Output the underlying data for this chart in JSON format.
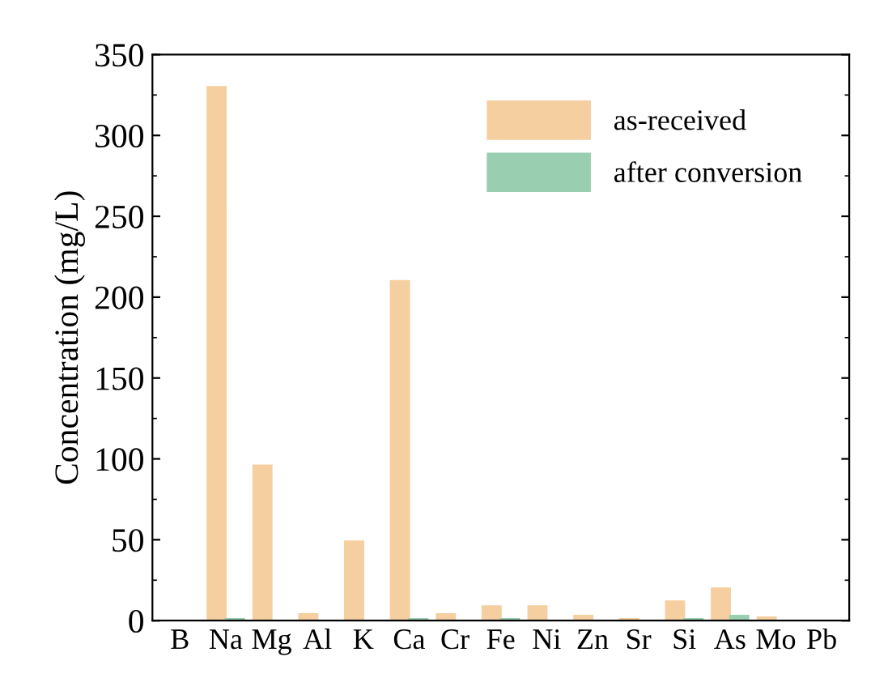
{
  "chart_data": {
    "type": "bar",
    "ylabel": "Concentration (mg/L)",
    "categories": [
      "B",
      "Na",
      "Mg",
      "Al",
      "K",
      "Ca",
      "Cr",
      "Fe",
      "Ni",
      "Zn",
      "Sr",
      "Si",
      "As",
      "Mo",
      "Pb"
    ],
    "series": [
      {
        "name": "as-received",
        "color": "#f5cfa0",
        "values": [
          0,
          330,
          96,
          4,
          49,
          210,
          4,
          9,
          9,
          3,
          1,
          12,
          20,
          2,
          0
        ]
      },
      {
        "name": "after conversion",
        "color": "#99cfb0",
        "values": [
          0,
          1,
          0,
          0,
          0,
          1,
          0,
          1,
          0,
          0,
          0,
          1,
          3,
          0,
          0
        ]
      }
    ],
    "ylim": [
      0,
      350
    ],
    "yticks": [
      0,
      50,
      100,
      150,
      200,
      250,
      300,
      350
    ],
    "grid": false,
    "legend": "top right"
  }
}
